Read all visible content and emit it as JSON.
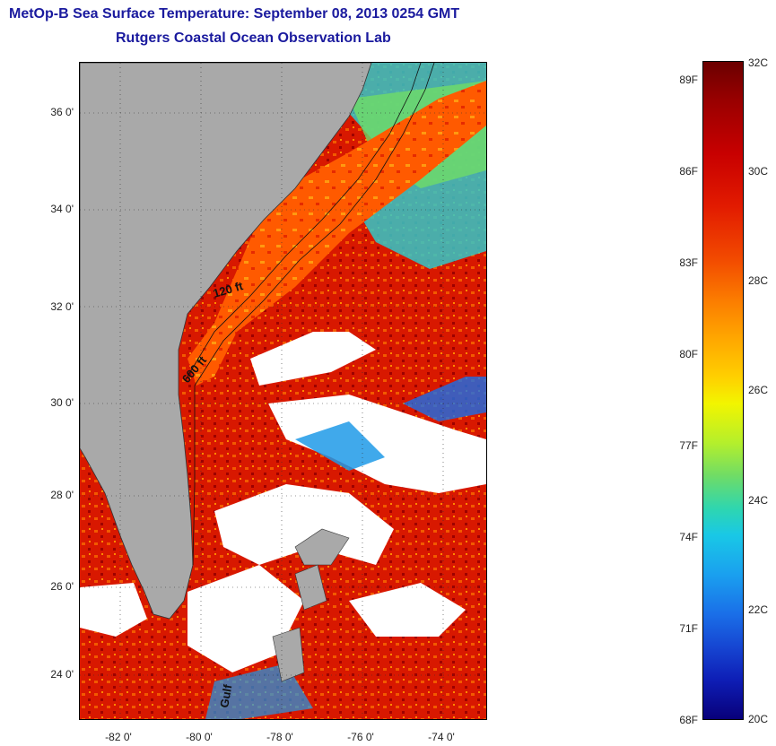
{
  "title": {
    "line1": "MetOp-B Sea Surface Temperature:  September 08, 2013 0254 GMT",
    "line2": "Rutgers Coastal Ocean Observation Lab"
  },
  "axes": {
    "latitude_labels": [
      "36 0'",
      "34 0'",
      "32 0'",
      "30 0'",
      "28 0'",
      "26 0'",
      "24 0'"
    ],
    "longitude_labels": [
      "-82 0'",
      "-80 0'",
      "-78 0'",
      "-76 0'",
      "-74 0'"
    ]
  },
  "map": {
    "contour_labels": [
      "120 ft",
      "600 ft",
      "Gulf"
    ],
    "colors": {
      "land": "#a9a9a9",
      "cloud": "#ffffff",
      "warm_water": "#e41a00",
      "shelf_water": "#ff6a00",
      "cool_water": "#1f9ae8"
    }
  },
  "colorbar": {
    "celsius_labels": [
      "32C",
      "30C",
      "28C",
      "26C",
      "24C",
      "22C",
      "20C"
    ],
    "fahrenheit_labels": [
      "89F",
      "86F",
      "83F",
      "80F",
      "77F",
      "74F",
      "71F",
      "68F"
    ],
    "range_c": [
      20,
      32
    ]
  }
}
